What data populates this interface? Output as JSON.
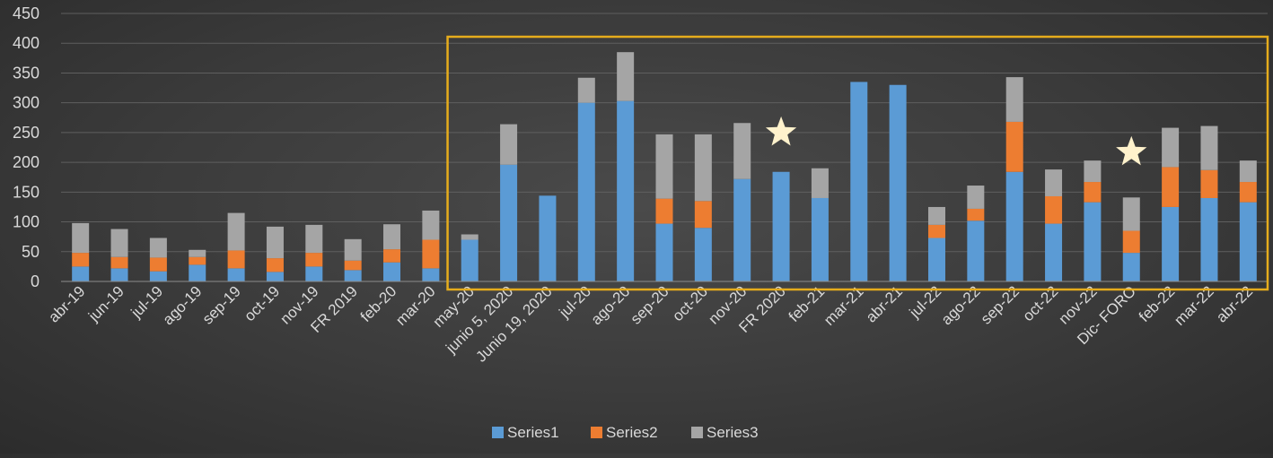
{
  "chart_data": {
    "type": "bar",
    "stacked": true,
    "categories": [
      "abr-19",
      "jun-19",
      "jul-19",
      "ago-19",
      "sep-19",
      "oct-19",
      "nov-19",
      "FR 2019",
      "feb-20",
      "mar-20",
      "may-20",
      "junio 5, 2020",
      "Junio 19, 2020",
      "jul-20",
      "ago-20",
      "sep-20",
      "oct-20",
      "nov-20",
      "FR 2020",
      "feb-21",
      "mar-21",
      "abr-21",
      "jul-22",
      "ago-22",
      "sep-22",
      "oct-22",
      "nov-22",
      "Dic- FORO",
      "feb-22",
      "mar-22",
      "abr-22"
    ],
    "series": [
      {
        "name": "Series1",
        "color": "#5b9bd5",
        "values": [
          25,
          22,
          17,
          28,
          22,
          16,
          25,
          19,
          32,
          22,
          70,
          196,
          144,
          300,
          303,
          97,
          90,
          172,
          184,
          140,
          335,
          330,
          73,
          102,
          184,
          97,
          133,
          48,
          125,
          140,
          133
        ]
      },
      {
        "name": "Series2",
        "color": "#ed7d31",
        "values": [
          23,
          19,
          23,
          13,
          30,
          23,
          23,
          16,
          22,
          48,
          0,
          0,
          0,
          0,
          0,
          42,
          45,
          0,
          0,
          0,
          0,
          0,
          22,
          20,
          84,
          46,
          34,
          37,
          67,
          47,
          34
        ]
      },
      {
        "name": "Series3",
        "color": "#a5a5a5",
        "values": [
          50,
          47,
          33,
          12,
          63,
          53,
          47,
          36,
          42,
          49,
          9,
          68,
          0,
          42,
          82,
          108,
          112,
          94,
          0,
          50,
          0,
          0,
          30,
          39,
          75,
          45,
          36,
          56,
          66,
          74,
          36
        ]
      }
    ],
    "ylim": [
      0,
      450
    ],
    "yticks": [
      0,
      50,
      100,
      150,
      200,
      250,
      300,
      350,
      400,
      450
    ],
    "ytick_labels": [
      "0",
      "50",
      "100",
      "150",
      "200",
      "250",
      "300",
      "350",
      "400",
      "450"
    ],
    "xlabel": "",
    "ylabel": "",
    "title": "",
    "grid": true,
    "legend_position": "bottom",
    "highlight_box": {
      "from_category": "may-20",
      "to_category": "abr-22",
      "color": "#e6ac1c"
    },
    "star_markers": [
      {
        "category": "FR 2020",
        "y": 250,
        "color": "#fff2cc"
      },
      {
        "category": "Dic- FORO",
        "y": 217,
        "color": "#fff2cc"
      }
    ]
  }
}
